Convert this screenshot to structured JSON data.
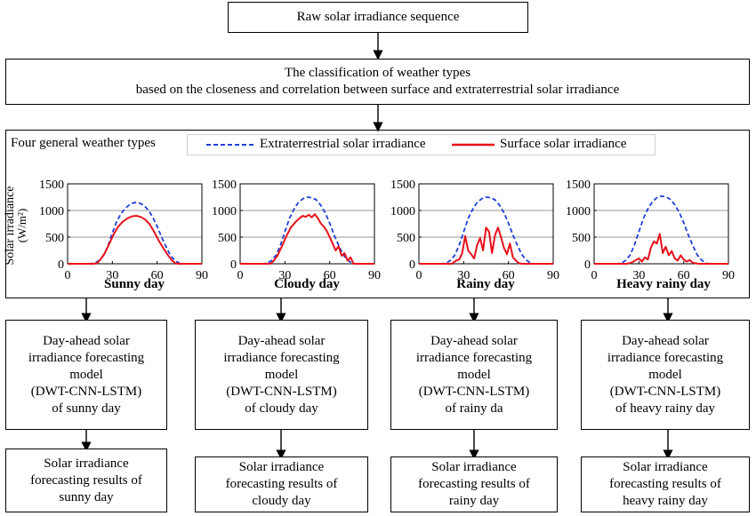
{
  "top_box": {
    "label": "Raw solar irradiance sequence"
  },
  "classification_box": {
    "line1": "The classification of weather types",
    "line2": "based on the closeness and correlation between surface and extraterrestrial solar irradiance"
  },
  "panel": {
    "title": "Four general weather types",
    "legend": {
      "extraterrestrial": "Extraterrestrial solar irradiance",
      "surface": "Surface solar irradiance"
    },
    "ylabel": "Solar irradiance",
    "yunit": "(W/m²)"
  },
  "colors": {
    "extraterrestrial": "#1f3fd6",
    "surface": "#e8101a"
  },
  "chart_data": [
    {
      "type": "line",
      "title": "Sunny day",
      "xlim": [
        0,
        90
      ],
      "ylim": [
        0,
        1500
      ],
      "xticks": [
        "0",
        "30",
        "60",
        "90"
      ],
      "yticks": [
        "0",
        "500",
        "1000",
        "1500"
      ],
      "series": [
        {
          "name": "Extraterrestrial solar irradiance",
          "style": "dashed",
          "x": [
            0,
            15,
            18,
            21,
            24,
            27,
            30,
            33,
            36,
            39,
            42,
            45,
            48,
            51,
            54,
            57,
            60,
            63,
            66,
            69,
            72,
            75,
            78,
            90
          ],
          "y": [
            0,
            0,
            10,
            60,
            150,
            330,
            580,
            800,
            950,
            1050,
            1120,
            1150,
            1140,
            1100,
            1010,
            880,
            700,
            500,
            320,
            150,
            60,
            10,
            0,
            0
          ]
        },
        {
          "name": "Surface solar irradiance",
          "style": "solid",
          "x": [
            0,
            18,
            20,
            22,
            25,
            28,
            31,
            34,
            37,
            40,
            43,
            46,
            49,
            52,
            55,
            58,
            61,
            64,
            67,
            70,
            72,
            74,
            90
          ],
          "y": [
            0,
            0,
            20,
            80,
            200,
            380,
            560,
            700,
            790,
            850,
            890,
            900,
            880,
            830,
            740,
            600,
            440,
            300,
            170,
            60,
            15,
            0,
            0
          ]
        }
      ]
    },
    {
      "type": "line",
      "title": "Cloudy day",
      "xlim": [
        0,
        90
      ],
      "ylim": [
        0,
        1500
      ],
      "xticks": [
        "0",
        "30",
        "60",
        "90"
      ],
      "yticks": [
        "0",
        "500",
        "1000",
        "1500"
      ],
      "series": [
        {
          "name": "Extraterrestrial solar irradiance",
          "style": "dashed",
          "x": [
            0,
            15,
            18,
            21,
            24,
            27,
            30,
            33,
            36,
            39,
            42,
            45,
            48,
            51,
            54,
            57,
            60,
            63,
            66,
            69,
            72,
            75,
            78,
            90
          ],
          "y": [
            0,
            0,
            10,
            60,
            160,
            350,
            600,
            850,
            1020,
            1150,
            1220,
            1250,
            1240,
            1200,
            1100,
            960,
            760,
            540,
            350,
            170,
            70,
            10,
            0,
            0
          ]
        },
        {
          "name": "Surface solar irradiance",
          "style": "solid",
          "x": [
            0,
            20,
            22,
            25,
            28,
            31,
            34,
            37,
            40,
            42,
            44,
            46,
            48,
            50,
            52,
            54,
            56,
            58,
            60,
            62,
            64,
            66,
            68,
            70,
            72,
            74,
            76,
            90
          ],
          "y": [
            0,
            0,
            40,
            150,
            330,
            520,
            680,
            780,
            860,
            900,
            880,
            920,
            870,
            930,
            860,
            760,
            700,
            620,
            500,
            380,
            250,
            330,
            150,
            200,
            60,
            120,
            0,
            0
          ]
        }
      ]
    },
    {
      "type": "line",
      "title": "Rainy day",
      "xlim": [
        0,
        90
      ],
      "ylim": [
        0,
        1500
      ],
      "xticks": [
        "0",
        "30",
        "60",
        "90"
      ],
      "yticks": [
        "0",
        "500",
        "1000",
        "1500"
      ],
      "series": [
        {
          "name": "Extraterrestrial solar irradiance",
          "style": "dashed",
          "x": [
            0,
            15,
            18,
            21,
            24,
            27,
            30,
            33,
            36,
            39,
            42,
            45,
            48,
            51,
            54,
            57,
            60,
            63,
            66,
            69,
            72,
            75,
            78,
            90
          ],
          "y": [
            0,
            0,
            10,
            60,
            160,
            350,
            600,
            850,
            1020,
            1150,
            1220,
            1250,
            1240,
            1200,
            1100,
            960,
            760,
            540,
            350,
            170,
            70,
            10,
            0,
            0
          ]
        },
        {
          "name": "Surface solar irradiance",
          "style": "solid",
          "x": [
            0,
            22,
            25,
            27,
            29,
            31,
            33,
            35,
            37,
            39,
            41,
            43,
            45,
            47,
            49,
            51,
            53,
            55,
            57,
            59,
            61,
            63,
            65,
            67,
            69,
            90
          ],
          "y": [
            0,
            0,
            60,
            80,
            200,
            520,
            250,
            180,
            100,
            350,
            480,
            250,
            680,
            600,
            200,
            540,
            680,
            500,
            300,
            180,
            380,
            120,
            60,
            10,
            0,
            0
          ]
        }
      ]
    },
    {
      "type": "line",
      "title": "Heavy rainy day",
      "xlim": [
        0,
        90
      ],
      "ylim": [
        0,
        1500
      ],
      "xticks": [
        "0",
        "30",
        "60",
        "90"
      ],
      "yticks": [
        "0",
        "500",
        "1000",
        "1500"
      ],
      "series": [
        {
          "name": "Extraterrestrial solar irradiance",
          "style": "dashed",
          "x": [
            0,
            15,
            18,
            21,
            24,
            27,
            30,
            33,
            36,
            39,
            42,
            45,
            48,
            51,
            54,
            57,
            60,
            63,
            66,
            69,
            72,
            75,
            78,
            90
          ],
          "y": [
            0,
            0,
            10,
            60,
            160,
            350,
            600,
            850,
            1030,
            1160,
            1240,
            1270,
            1260,
            1210,
            1110,
            970,
            770,
            550,
            350,
            170,
            70,
            10,
            0,
            0
          ]
        },
        {
          "name": "Surface solar irradiance",
          "style": "solid",
          "x": [
            0,
            22,
            25,
            28,
            30,
            32,
            34,
            36,
            38,
            40,
            42,
            44,
            46,
            48,
            50,
            52,
            54,
            56,
            58,
            60,
            62,
            64,
            66,
            68,
            70,
            90
          ],
          "y": [
            0,
            0,
            20,
            70,
            100,
            40,
            120,
            80,
            300,
            420,
            380,
            560,
            200,
            320,
            160,
            240,
            100,
            60,
            160,
            80,
            40,
            70,
            20,
            10,
            0,
            0
          ]
        }
      ]
    }
  ],
  "model_boxes": [
    "Day-ahead solar\nirradiance forecasting\nmodel\n(DWT-CNN-LSTM)\nof sunny day",
    "Day-ahead solar\nirradiance forecasting\nmodel\n(DWT-CNN-LSTM)\nof cloudy day",
    "Day-ahead solar\nirradiance forecasting\nmodel\n(DWT-CNN-LSTM)\nof rainy da",
    "Day-ahead solar\nirradiance forecasting\nmodel\n(DWT-CNN-LSTM)\nof heavy rainy day"
  ],
  "result_boxes": [
    "Solar irradiance\nforecasting results of\nsunny day",
    "Solar irradiance\nforecasting results of\ncloudy day",
    "Solar irradiance\nforecasting results of\nrainy day",
    "Solar irradiance\nforecasting results of\nheavy rainy day"
  ]
}
